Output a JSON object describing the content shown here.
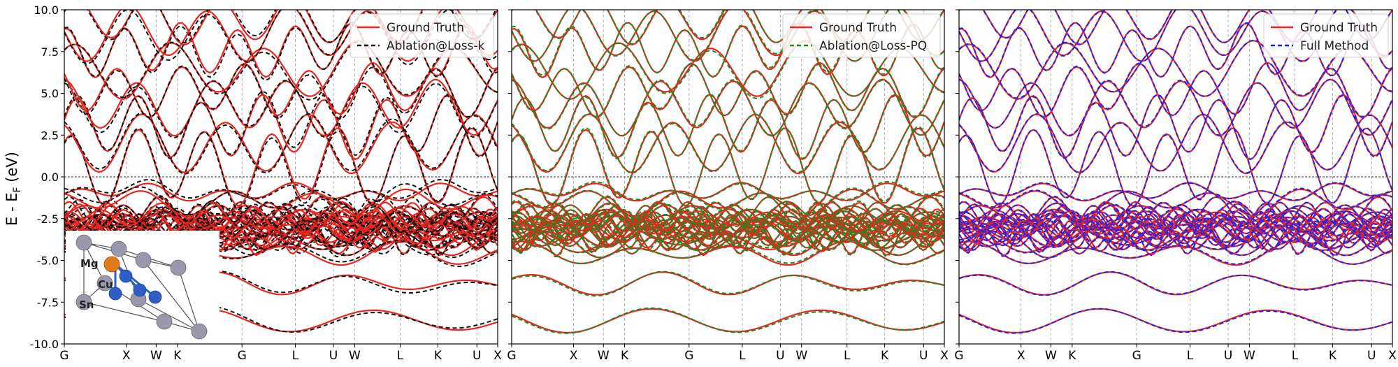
{
  "figure": {
    "ylabel_main": "E - E",
    "ylabel_sub": "F",
    "ylabel_unit": " (eV)"
  },
  "chart_data": [
    {
      "type": "line",
      "panel": "left",
      "ylim": [
        -10,
        10
      ],
      "yticks": [
        -10.0,
        -7.5,
        -5.0,
        -2.5,
        0.0,
        2.5,
        5.0,
        7.5,
        10.0
      ],
      "ytick_labels": [
        "-10.0",
        "-7.5",
        "-5.0",
        "-2.5",
        "0.0",
        "2.5",
        "5.0",
        "7.5",
        "10.0"
      ],
      "kpoint_labels": [
        "G",
        "X",
        "W",
        "K",
        "G",
        "L",
        "U",
        "W",
        "L",
        "K",
        "U",
        "X"
      ],
      "kpoint_positions": [
        0,
        0.143,
        0.212,
        0.261,
        0.41,
        0.533,
        0.621,
        0.67,
        0.775,
        0.862,
        0.952,
        1.0
      ],
      "grid": "vertical dashed at k-points",
      "fermi_level": 0.0,
      "legend_position": "top-right",
      "legend": [
        {
          "name": "Ground Truth",
          "color": "#e8261f",
          "dash": "solid"
        },
        {
          "name": "Ablation@Loss-k",
          "color": "#111111",
          "dash": "dashed"
        }
      ],
      "colors": {
        "reference": "#e8261f",
        "overlay": "#111111"
      },
      "inset": {
        "atom_labels": [
          "Mg",
          "Cu",
          "Sn"
        ],
        "atom_colors": {
          "Mg": "#e07b1a",
          "Cu": "#2f5fc4",
          "Sn": "#9a98ad"
        }
      }
    },
    {
      "type": "line",
      "panel": "middle",
      "ylim": [
        -10,
        10
      ],
      "kpoint_labels": [
        "G",
        "X",
        "W",
        "K",
        "G",
        "L",
        "U",
        "W",
        "L",
        "K",
        "U",
        "X"
      ],
      "kpoint_positions": [
        0,
        0.143,
        0.212,
        0.261,
        0.41,
        0.533,
        0.621,
        0.67,
        0.775,
        0.862,
        0.952,
        1.0
      ],
      "grid": "vertical dashed at k-points",
      "fermi_level": 0.0,
      "legend_position": "top-right",
      "legend": [
        {
          "name": "Ground Truth",
          "color": "#e8261f",
          "dash": "solid"
        },
        {
          "name": "Ablation@Loss-PQ",
          "color": "#1a8a1a",
          "dash": "dashed"
        }
      ],
      "colors": {
        "reference": "#e8261f",
        "overlay": "#1f8a1f"
      }
    },
    {
      "type": "line",
      "panel": "right",
      "ylim": [
        -10,
        10
      ],
      "kpoint_labels": [
        "G",
        "X",
        "W",
        "K",
        "G",
        "L",
        "U",
        "W",
        "L",
        "K",
        "U",
        "X"
      ],
      "kpoint_positions": [
        0,
        0.143,
        0.212,
        0.261,
        0.41,
        0.533,
        0.621,
        0.67,
        0.775,
        0.862,
        0.952,
        1.0
      ],
      "grid": "vertical dashed at k-points",
      "fermi_level": 0.0,
      "legend_position": "top-right",
      "legend": [
        {
          "name": "Ground Truth",
          "color": "#e8261f",
          "dash": "solid"
        },
        {
          "name": "Full Method",
          "color": "#1f1fe0",
          "dash": "dashed"
        }
      ],
      "colors": {
        "reference": "#e8261f",
        "overlay": "#2222ee"
      }
    }
  ]
}
